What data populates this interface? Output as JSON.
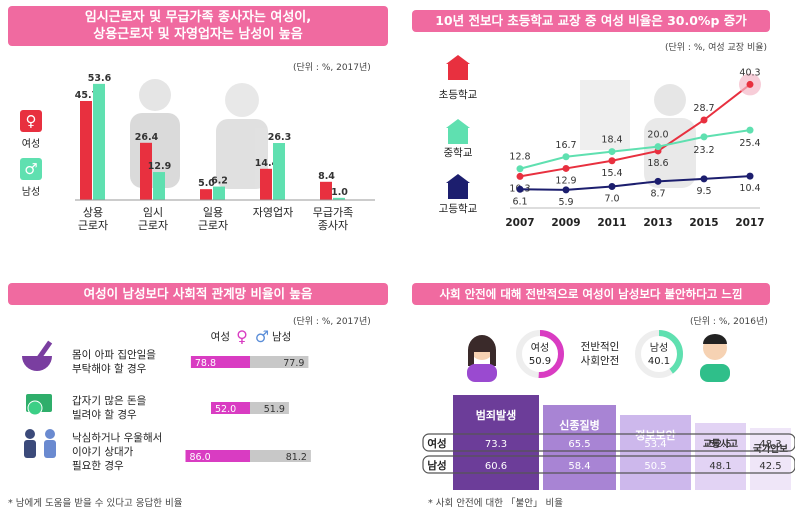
{
  "colors": {
    "pink": "#f06aa0",
    "red": "#e8303f",
    "mint": "#5fe0b0",
    "navy": "#1c1e6e",
    "magenta": "#d93cc2",
    "gray": "#c8c8c8",
    "purple": "#6c3d99",
    "lavender": "#a884d4",
    "lightlav": "#cdb8ec"
  },
  "panel1": {
    "title_line1": "임시근로자 및 무급가족 종사자는 여성이,",
    "title_line2": "상용근로자 및 자영업자는 남성이 높음",
    "unit": "(단위 : %, 2017년)",
    "legend_female": "여성",
    "legend_male": "남성",
    "female_icon": "female-symbol-icon",
    "male_icon": "male-symbol-icon"
  },
  "panel2": {
    "title": "10년 전보다 초등학교 교장 중 여성 비율은 30.0%p 증가",
    "unit": "(단위 : %, 여성 교장 비율)",
    "label_elem": "초등학교",
    "label_middle": "중학교",
    "label_high": "고등학교"
  },
  "panel3": {
    "title": "여성이 남성보다 사회적 관계망 비율이 높음",
    "unit": "(단위 : %, 2017년)",
    "legend_female": "여성",
    "legend_male": "남성",
    "row1_line1": "몸이 아파 집안일을",
    "row1_line2": "부탁해야 할 경우",
    "row2_line1": "갑자기 많은 돈을",
    "row2_line2": "빌려야 할 경우",
    "row3_line1": "낙심하거나 우울해서",
    "row3_line2": "이야기 상대가",
    "row3_line3": "필요한 경우",
    "note": "* 남에게 도움을 받을 수 있다고 응답한 비율"
  },
  "panel4": {
    "title": "사회 안전에 대해 전반적으로 여성이 남성보다 불안하다고 느낌",
    "unit": "(단위 : %, 2016년)",
    "overall_line1": "전반적인",
    "overall_line2": "사회안전",
    "female_label": "여성",
    "female_value": "50.9",
    "male_label": "남성",
    "male_value": "40.1",
    "note": "* 사회 안전에 대한 「불안」 비율"
  },
  "chart_data": [
    {
      "type": "bar",
      "categories": [
        "상용 근로자",
        "임시 근로자",
        "일용 근로자",
        "자영업자",
        "무급가족 종사자"
      ],
      "series": [
        {
          "name": "여성",
          "values": [
            45.7,
            26.4,
            5.0,
            14.4,
            8.4
          ]
        },
        {
          "name": "남성",
          "values": [
            53.6,
            12.9,
            6.2,
            26.3,
            1.0
          ]
        }
      ],
      "ylim": [
        0,
        60
      ]
    },
    {
      "type": "line",
      "x": [
        "2007",
        "2009",
        "2011",
        "2013",
        "2015",
        "2017"
      ],
      "series": [
        {
          "name": "초등학교",
          "values": [
            10.3,
            12.9,
            15.4,
            18.6,
            28.7,
            40.3
          ]
        },
        {
          "name": "중학교",
          "values": [
            12.8,
            16.7,
            18.4,
            20.0,
            23.2,
            25.4
          ]
        },
        {
          "name": "고등학교",
          "values": [
            6.1,
            5.9,
            7.0,
            8.7,
            9.5,
            10.4
          ]
        }
      ],
      "ylim": [
        0,
        45
      ]
    },
    {
      "type": "bar",
      "categories": [
        "몸이 아파 집안일을 부탁해야 할 경우",
        "갑자기 많은 돈을 빌려야 할 경우",
        "낙심하거나 우울해서 이야기 상대가 필요한 경우"
      ],
      "series": [
        {
          "name": "여성",
          "values": [
            78.8,
            52.0,
            86.0
          ]
        },
        {
          "name": "남성",
          "values": [
            77.9,
            51.9,
            81.2
          ]
        }
      ]
    },
    {
      "type": "table",
      "columns": [
        "범죄발생",
        "신종질병",
        "정보보안",
        "교통사고",
        "국가안보"
      ],
      "rows": [
        {
          "name": "여성",
          "values": [
            73.3,
            65.5,
            53.4,
            52.5,
            48.3
          ]
        },
        {
          "name": "남성",
          "values": [
            60.6,
            58.4,
            50.5,
            48.1,
            42.5
          ]
        }
      ],
      "overall": [
        {
          "name": "여성",
          "value": 50.9
        },
        {
          "name": "남성",
          "value": 40.1
        }
      ]
    }
  ]
}
